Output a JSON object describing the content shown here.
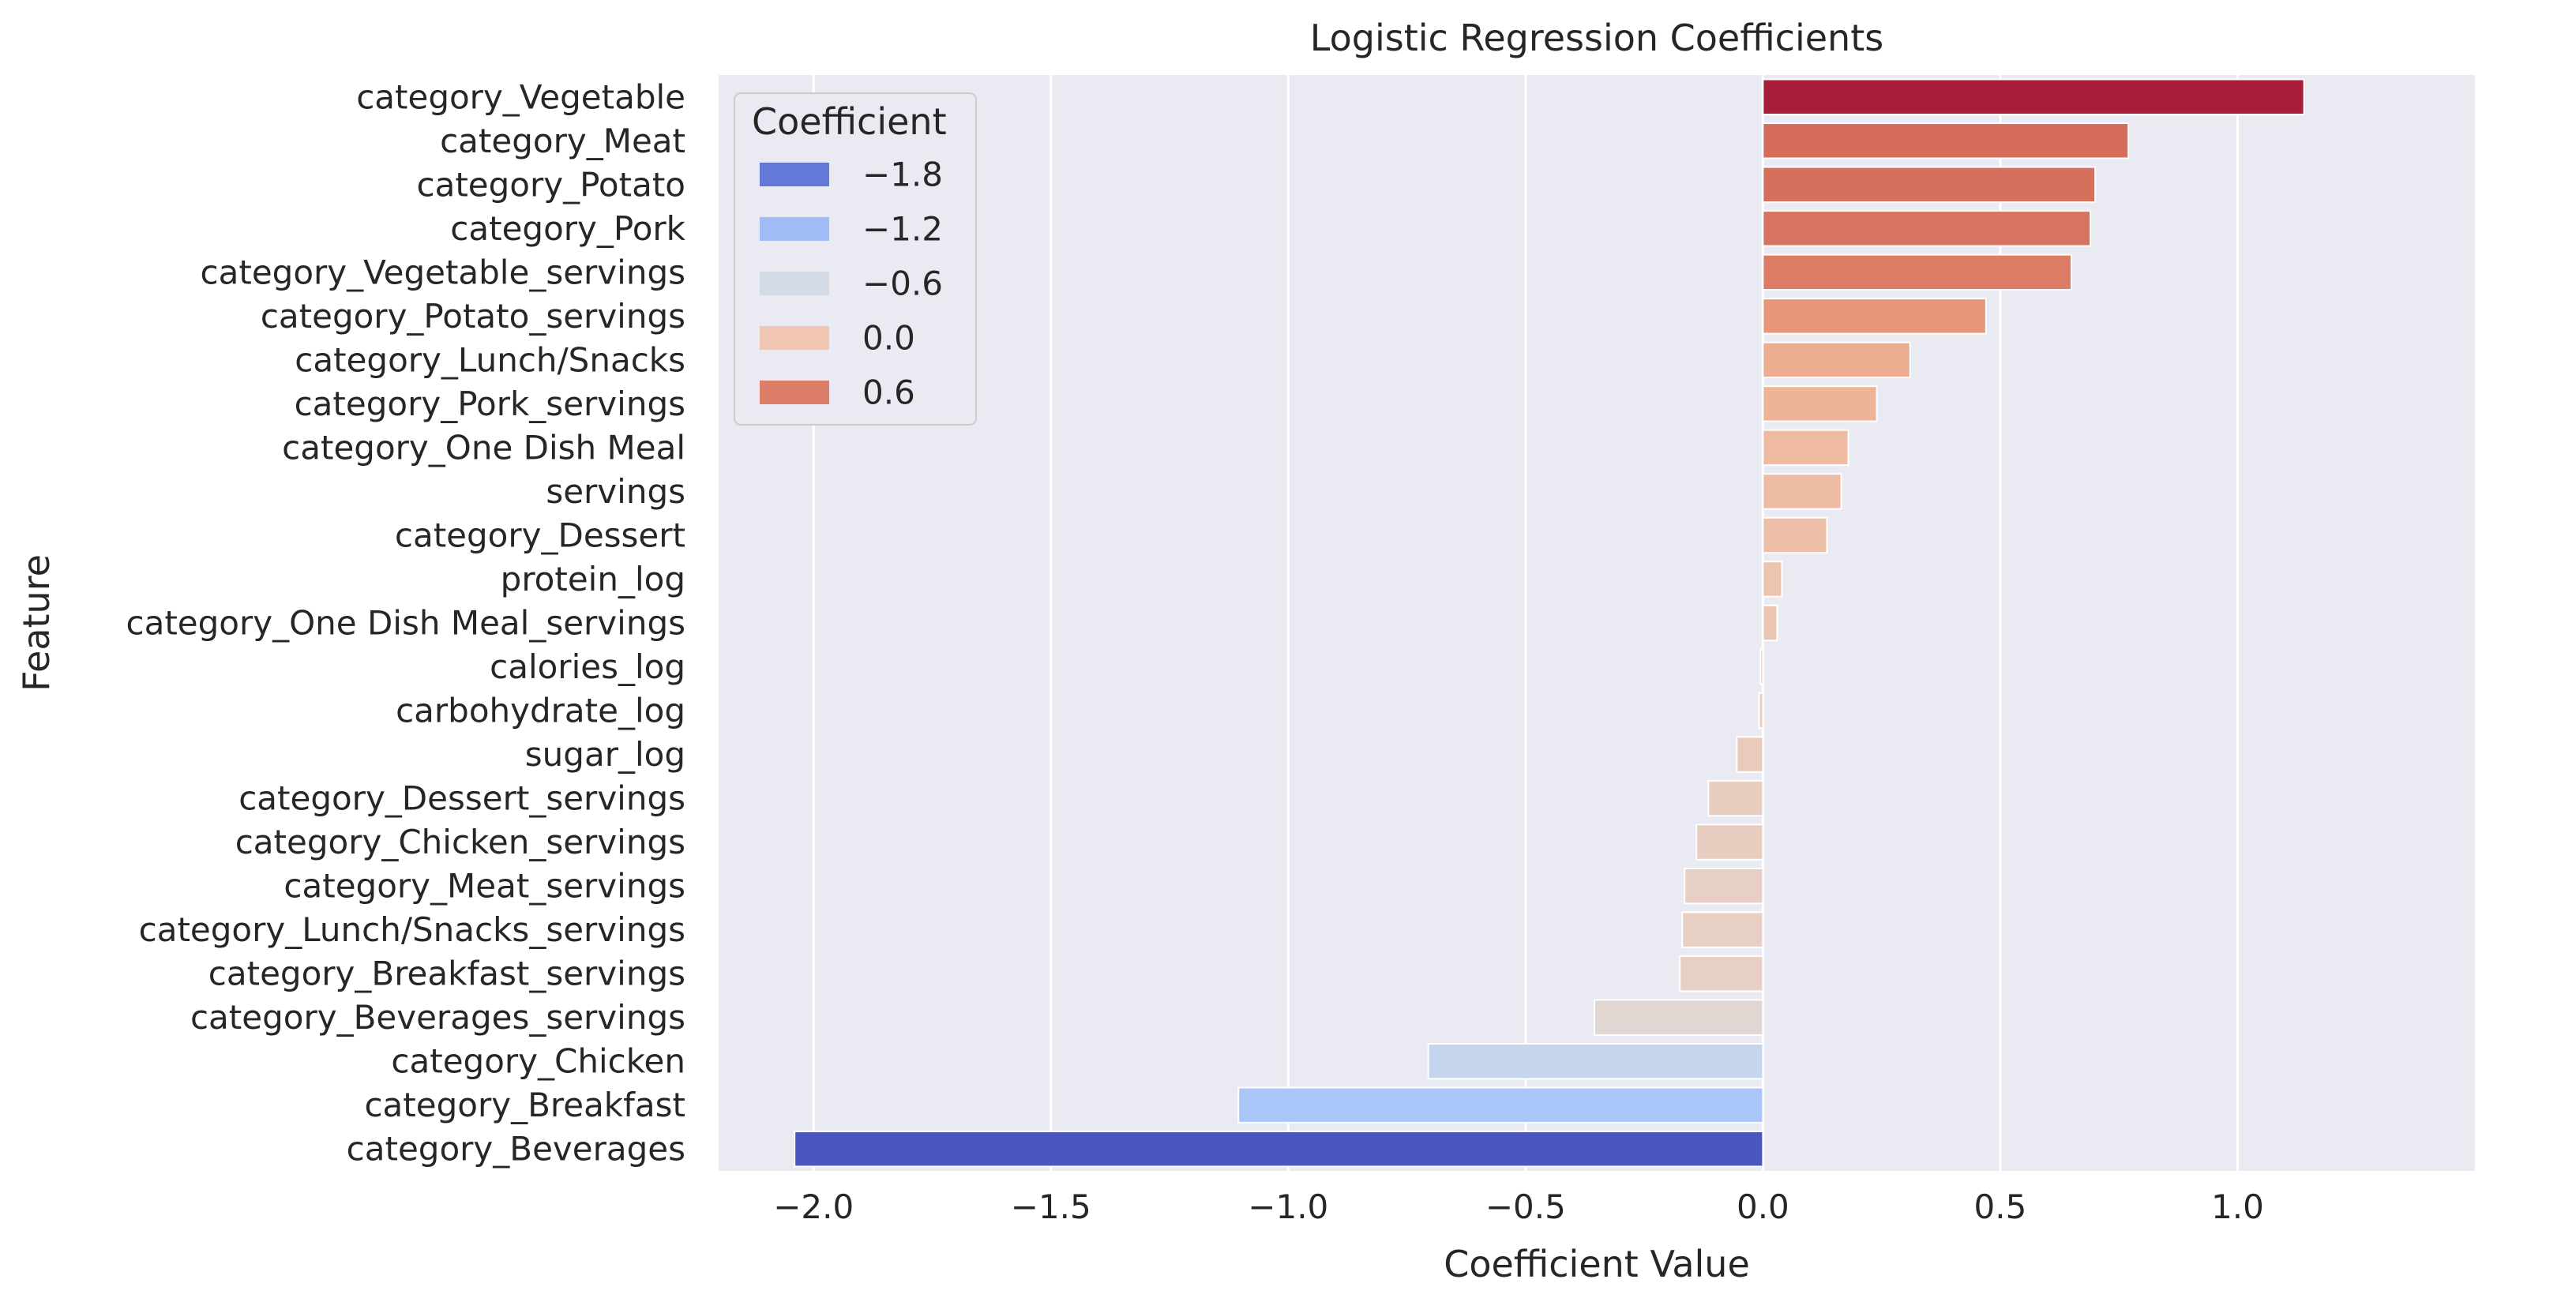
{
  "chart_data": {
    "type": "bar",
    "orientation": "horizontal",
    "title": "Logistic Regression Coefficients",
    "xlabel": "Coefficient Value",
    "ylabel": "Feature",
    "xlim": [
      -2.2,
      1.5
    ],
    "xticks": [
      -2.0,
      -1.5,
      -1.0,
      -0.5,
      0.0,
      0.5,
      1.0
    ],
    "xtick_labels": [
      "−2.0",
      "−1.5",
      "−1.0",
      "−0.5",
      "0.0",
      "0.5",
      "1.0"
    ],
    "grid": true,
    "colormap": "coolwarm",
    "categories": [
      "category_Vegetable",
      "category_Meat",
      "category_Potato",
      "category_Pork",
      "category_Vegetable_servings",
      "category_Potato_servings",
      "category_Lunch/Snacks",
      "category_Pork_servings",
      "category_One Dish Meal",
      "servings",
      "category_Dessert",
      "protein_log",
      "category_One Dish Meal_servings",
      "calories_log",
      "carbohydrate_log",
      "sugar_log",
      "category_Dessert_servings",
      "category_Chicken_servings",
      "category_Meat_servings",
      "category_Lunch/Snacks_servings",
      "category_Breakfast_servings",
      "category_Beverages_servings",
      "category_Chicken",
      "category_Breakfast",
      "category_Beverages"
    ],
    "values": [
      1.14,
      0.77,
      0.7,
      0.69,
      0.65,
      0.47,
      0.31,
      0.24,
      0.18,
      0.165,
      0.135,
      0.04,
      0.03,
      -0.005,
      -0.008,
      -0.055,
      -0.115,
      -0.14,
      -0.165,
      -0.17,
      -0.175,
      -0.355,
      -0.705,
      -1.105,
      -2.04
    ],
    "colors": [
      "#a81d37",
      "#d66c5a",
      "#d6705c",
      "#d7735e",
      "#dc7c65",
      "#e89679",
      "#ecac8f",
      "#edb498",
      "#eebba2",
      "#eebba3",
      "#edbea7",
      "#ecc4b0",
      "#ecc5b2",
      "#e9cbba",
      "#e9cbbb",
      "#e9cabb",
      "#e8cdc0",
      "#e8cdc1",
      "#e7cfc3",
      "#e7cfc4",
      "#e7cfc4",
      "#e0d6d2",
      "#c6d5ee",
      "#aac5f7",
      "#4a57bf"
    ],
    "legend": {
      "title": "Coefficient",
      "position": "upper-left",
      "entries": [
        {
          "label": "−1.8",
          "color": "#6479d7"
        },
        {
          "label": "−1.2",
          "color": "#a0bbf6"
        },
        {
          "label": "−0.6",
          "color": "#d3dbe7"
        },
        {
          "label": "0.0",
          "color": "#f0c6b3"
        },
        {
          "label": "0.6",
          "color": "#dc7d68"
        }
      ]
    }
  }
}
